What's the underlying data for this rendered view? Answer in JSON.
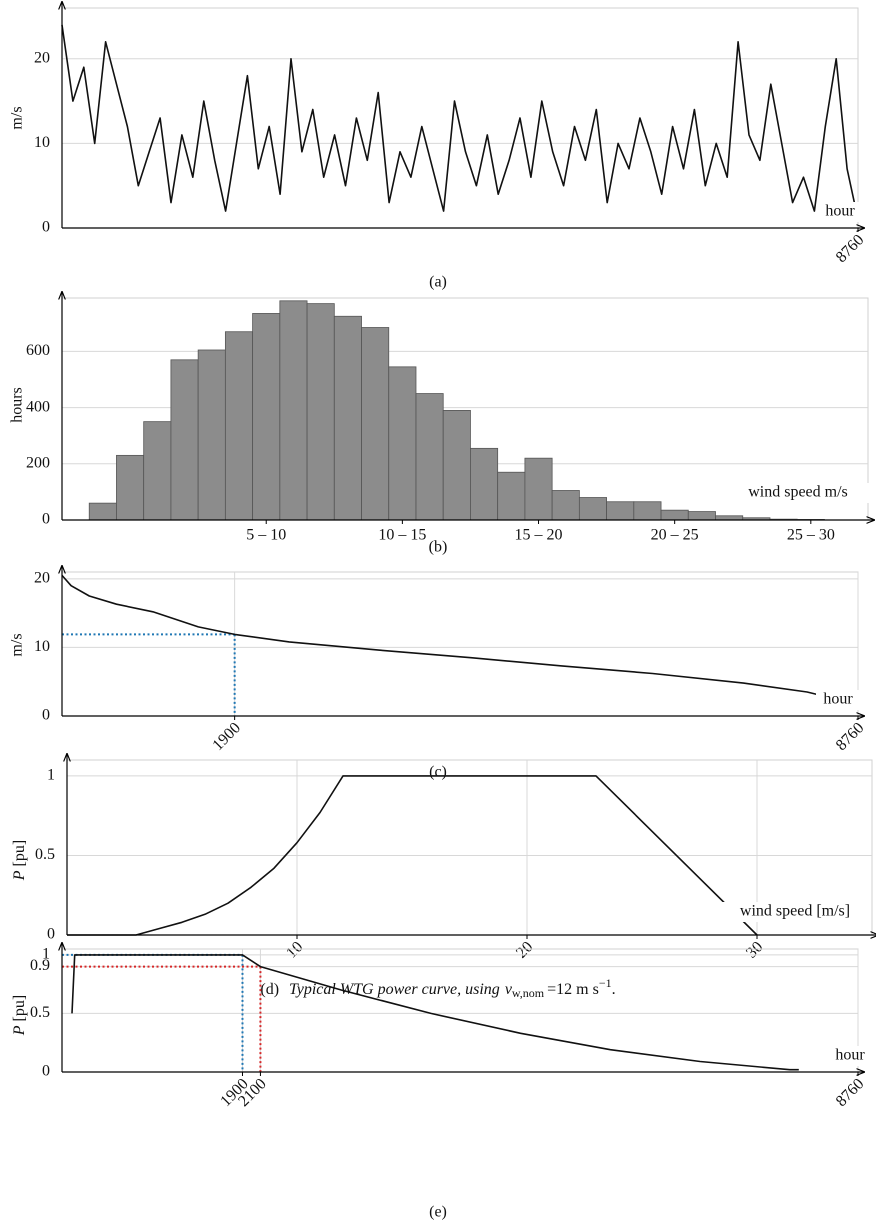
{
  "chart_data": [
    {
      "type": "line",
      "caption": "(a)",
      "xlabel": "hour",
      "ylabel": "m/s",
      "x": [
        0,
        120,
        240,
        360,
        480,
        600,
        720,
        840,
        960,
        1080,
        1200,
        1320,
        1440,
        1560,
        1680,
        1800,
        1920,
        2040,
        2160,
        2280,
        2400,
        2520,
        2640,
        2760,
        2880,
        3000,
        3120,
        3240,
        3360,
        3480,
        3600,
        3720,
        3840,
        3960,
        4080,
        4200,
        4320,
        4440,
        4560,
        4680,
        4800,
        4920,
        5040,
        5160,
        5280,
        5400,
        5520,
        5640,
        5760,
        5880,
        6000,
        6120,
        6240,
        6360,
        6480,
        6600,
        6720,
        6840,
        6960,
        7080,
        7200,
        7320,
        7440,
        7560,
        7680,
        7800,
        7920,
        8040,
        8160,
        8280,
        8400,
        8520,
        8640,
        8760
      ],
      "series": [
        {
          "color": "#111111",
          "values": [
            24,
            15,
            19,
            10,
            22,
            17,
            12,
            5,
            9,
            13,
            3,
            11,
            6,
            15,
            8,
            2,
            10,
            18,
            7,
            12,
            4,
            20,
            9,
            14,
            6,
            11,
            5,
            13,
            8,
            16,
            3,
            9,
            6,
            12,
            7,
            2,
            15,
            9,
            5,
            11,
            4,
            8,
            13,
            6,
            15,
            9,
            5,
            12,
            8,
            14,
            3,
            10,
            7,
            13,
            9,
            4,
            12,
            7,
            14,
            5,
            10,
            6,
            22,
            11,
            8,
            17,
            10,
            3,
            6,
            2,
            12,
            20,
            7,
            1
          ]
        }
      ],
      "xlim": [
        0,
        8760
      ],
      "ylim": [
        0,
        26
      ],
      "xticks": [
        8760
      ],
      "yticks": [
        0,
        10,
        20
      ],
      "xtick_rotation": -45,
      "grid": true,
      "xgrid": false
    },
    {
      "type": "histogram",
      "caption": "(b)",
      "xlabel": "wind speed m/s",
      "ylabel": "hours",
      "bins": [
        1,
        2,
        3,
        4,
        5,
        6,
        7,
        8,
        9,
        10,
        11,
        12,
        13,
        14,
        15,
        16,
        17,
        18,
        19,
        20,
        21,
        22,
        23,
        24,
        25,
        26,
        27,
        28
      ],
      "values": [
        60,
        230,
        350,
        570,
        605,
        670,
        735,
        780,
        770,
        725,
        685,
        545,
        450,
        390,
        255,
        170,
        220,
        105,
        80,
        65,
        65,
        35,
        30,
        15,
        8,
        3,
        2
      ],
      "color": "#8c8c8c",
      "xlim": [
        0,
        29.6
      ],
      "ylim": [
        0,
        790
      ],
      "xticks": [
        {
          "value": 7.5,
          "label": "5 – 10"
        },
        {
          "value": 12.5,
          "label": "10 – 15"
        },
        {
          "value": 17.5,
          "label": "15 – 20"
        },
        {
          "value": 22.5,
          "label": "20 – 25"
        },
        {
          "value": 27.5,
          "label": "25 – 30"
        }
      ],
      "yticks": [
        0,
        200,
        400,
        600
      ],
      "xtick_rotation": 0,
      "grid": true,
      "xgrid": false
    },
    {
      "type": "line",
      "caption": "(c)",
      "xlabel": "hour",
      "ylabel": "m/s",
      "x": [
        0,
        100,
        300,
        600,
        1000,
        1500,
        1900,
        2500,
        3500,
        4500,
        5500,
        6500,
        7500,
        8200,
        8600
      ],
      "series": [
        {
          "color": "#111111",
          "values": [
            20.5,
            19,
            17.5,
            16.3,
            15.2,
            13,
            11.9,
            10.8,
            9.6,
            8.5,
            7.3,
            6.2,
            4.8,
            3.5,
            2.2
          ]
        }
      ],
      "guides": [
        {
          "x": 1900,
          "y": 11.9,
          "color": "#1f77b4"
        }
      ],
      "xlim": [
        0,
        8760
      ],
      "ylim": [
        0,
        21
      ],
      "xticks": [
        1900,
        8760
      ],
      "yticks": [
        0,
        10,
        20
      ],
      "xtick_rotation": -45,
      "grid": true,
      "xgrid": true
    },
    {
      "type": "line",
      "caption": {
        "label": "(d)",
        "text": "Typical WTG power curve, using",
        "symbol": "v",
        "subscript": "w,nom",
        "equals": "=12 m s",
        "superscript": "−1",
        "end": "."
      },
      "xlabel": "wind speed [m/s]",
      "ylabel": {
        "symbol": "P",
        "unit": "[pu]"
      },
      "x": [
        0,
        3,
        4,
        5,
        6,
        7,
        8,
        9,
        10,
        11,
        12,
        23,
        30
      ],
      "series": [
        {
          "color": "#111111",
          "values": [
            0,
            0,
            0.04,
            0.08,
            0.13,
            0.2,
            0.3,
            0.42,
            0.58,
            0.77,
            1,
            1,
            0
          ]
        }
      ],
      "xlim": [
        0,
        35
      ],
      "ylim": [
        0,
        1.1
      ],
      "xticks": [
        10,
        20,
        30
      ],
      "yticks": [
        0,
        0.5,
        1
      ],
      "xtick_rotation": -45,
      "grid": true,
      "xgrid": true
    },
    {
      "type": "line",
      "caption": "(e)",
      "xlabel": "hour",
      "ylabel": {
        "symbol": "P",
        "unit": "[pu]"
      },
      "x": [
        0,
        30,
        1900,
        2100,
        3000,
        4000,
        5000,
        6000,
        7000,
        8000,
        8100
      ],
      "series": [
        {
          "color": "#111111",
          "values": [
            0.5,
            1,
            1,
            0.9,
            0.7,
            0.5,
            0.33,
            0.19,
            0.09,
            0.02,
            0.02
          ]
        }
      ],
      "guides": [
        {
          "x": 1900,
          "y": 1,
          "color": "#1f77b4"
        },
        {
          "x": 2100,
          "y": 0.9,
          "color": "#d62728"
        }
      ],
      "xlim": [
        0,
        8760
      ],
      "ylim": [
        0,
        1.05
      ],
      "xticks": [
        1900,
        2100,
        8760
      ],
      "yticks": [
        0,
        0.5,
        0.9,
        1
      ],
      "xtick_rotation": -45,
      "grid": true,
      "xgrid": true
    }
  ]
}
